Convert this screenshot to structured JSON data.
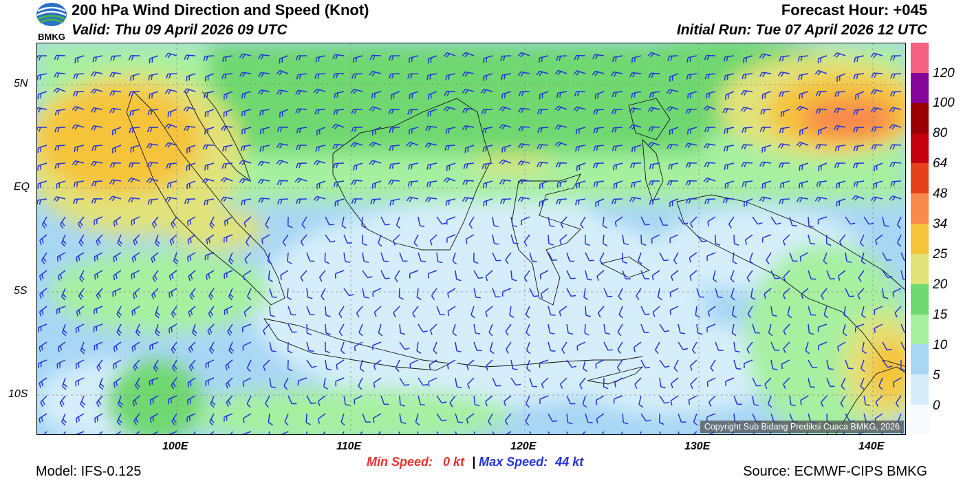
{
  "header": {
    "logo_text": "BMKG",
    "title": "200 hPa Wind Direction and Speed (Knot)",
    "valid": "Valid: Thu 09 April 2026 09 UTC",
    "forecast_hour": "Forecast Hour: +045",
    "initial_run": "Initial Run: Tue 07 April 2026 12 UTC"
  },
  "map": {
    "lat_labels": [
      "5N",
      "EQ",
      "5S",
      "10S"
    ],
    "lon_labels": [
      "100E",
      "110E",
      "120E",
      "130E",
      "140E"
    ],
    "copyright": "Copyright Sub Bidang Prediksi Cuaca BMKG, 2026"
  },
  "colorbar": {
    "labels": [
      "120",
      "100",
      "80",
      "64",
      "48",
      "34",
      "25",
      "20",
      "15",
      "10",
      "5",
      "0"
    ],
    "colors": [
      "#f7fbff",
      "#d6eefb",
      "#a8d6f5",
      "#a6f0a0",
      "#6fd86f",
      "#e1e27a",
      "#f6c43a",
      "#f98a4c",
      "#e7401d",
      "#c5000d",
      "#9a0003",
      "#85059a",
      "#f4607f"
    ]
  },
  "footer": {
    "min_speed_label": "Min Speed:",
    "min_speed_value": "0 kt",
    "separator": "|",
    "max_speed_label": "Max Speed:",
    "max_speed_value": "44 kt",
    "model": "Model: IFS-0.125",
    "source": "Source: ECMWF-CIPS BMKG"
  }
}
